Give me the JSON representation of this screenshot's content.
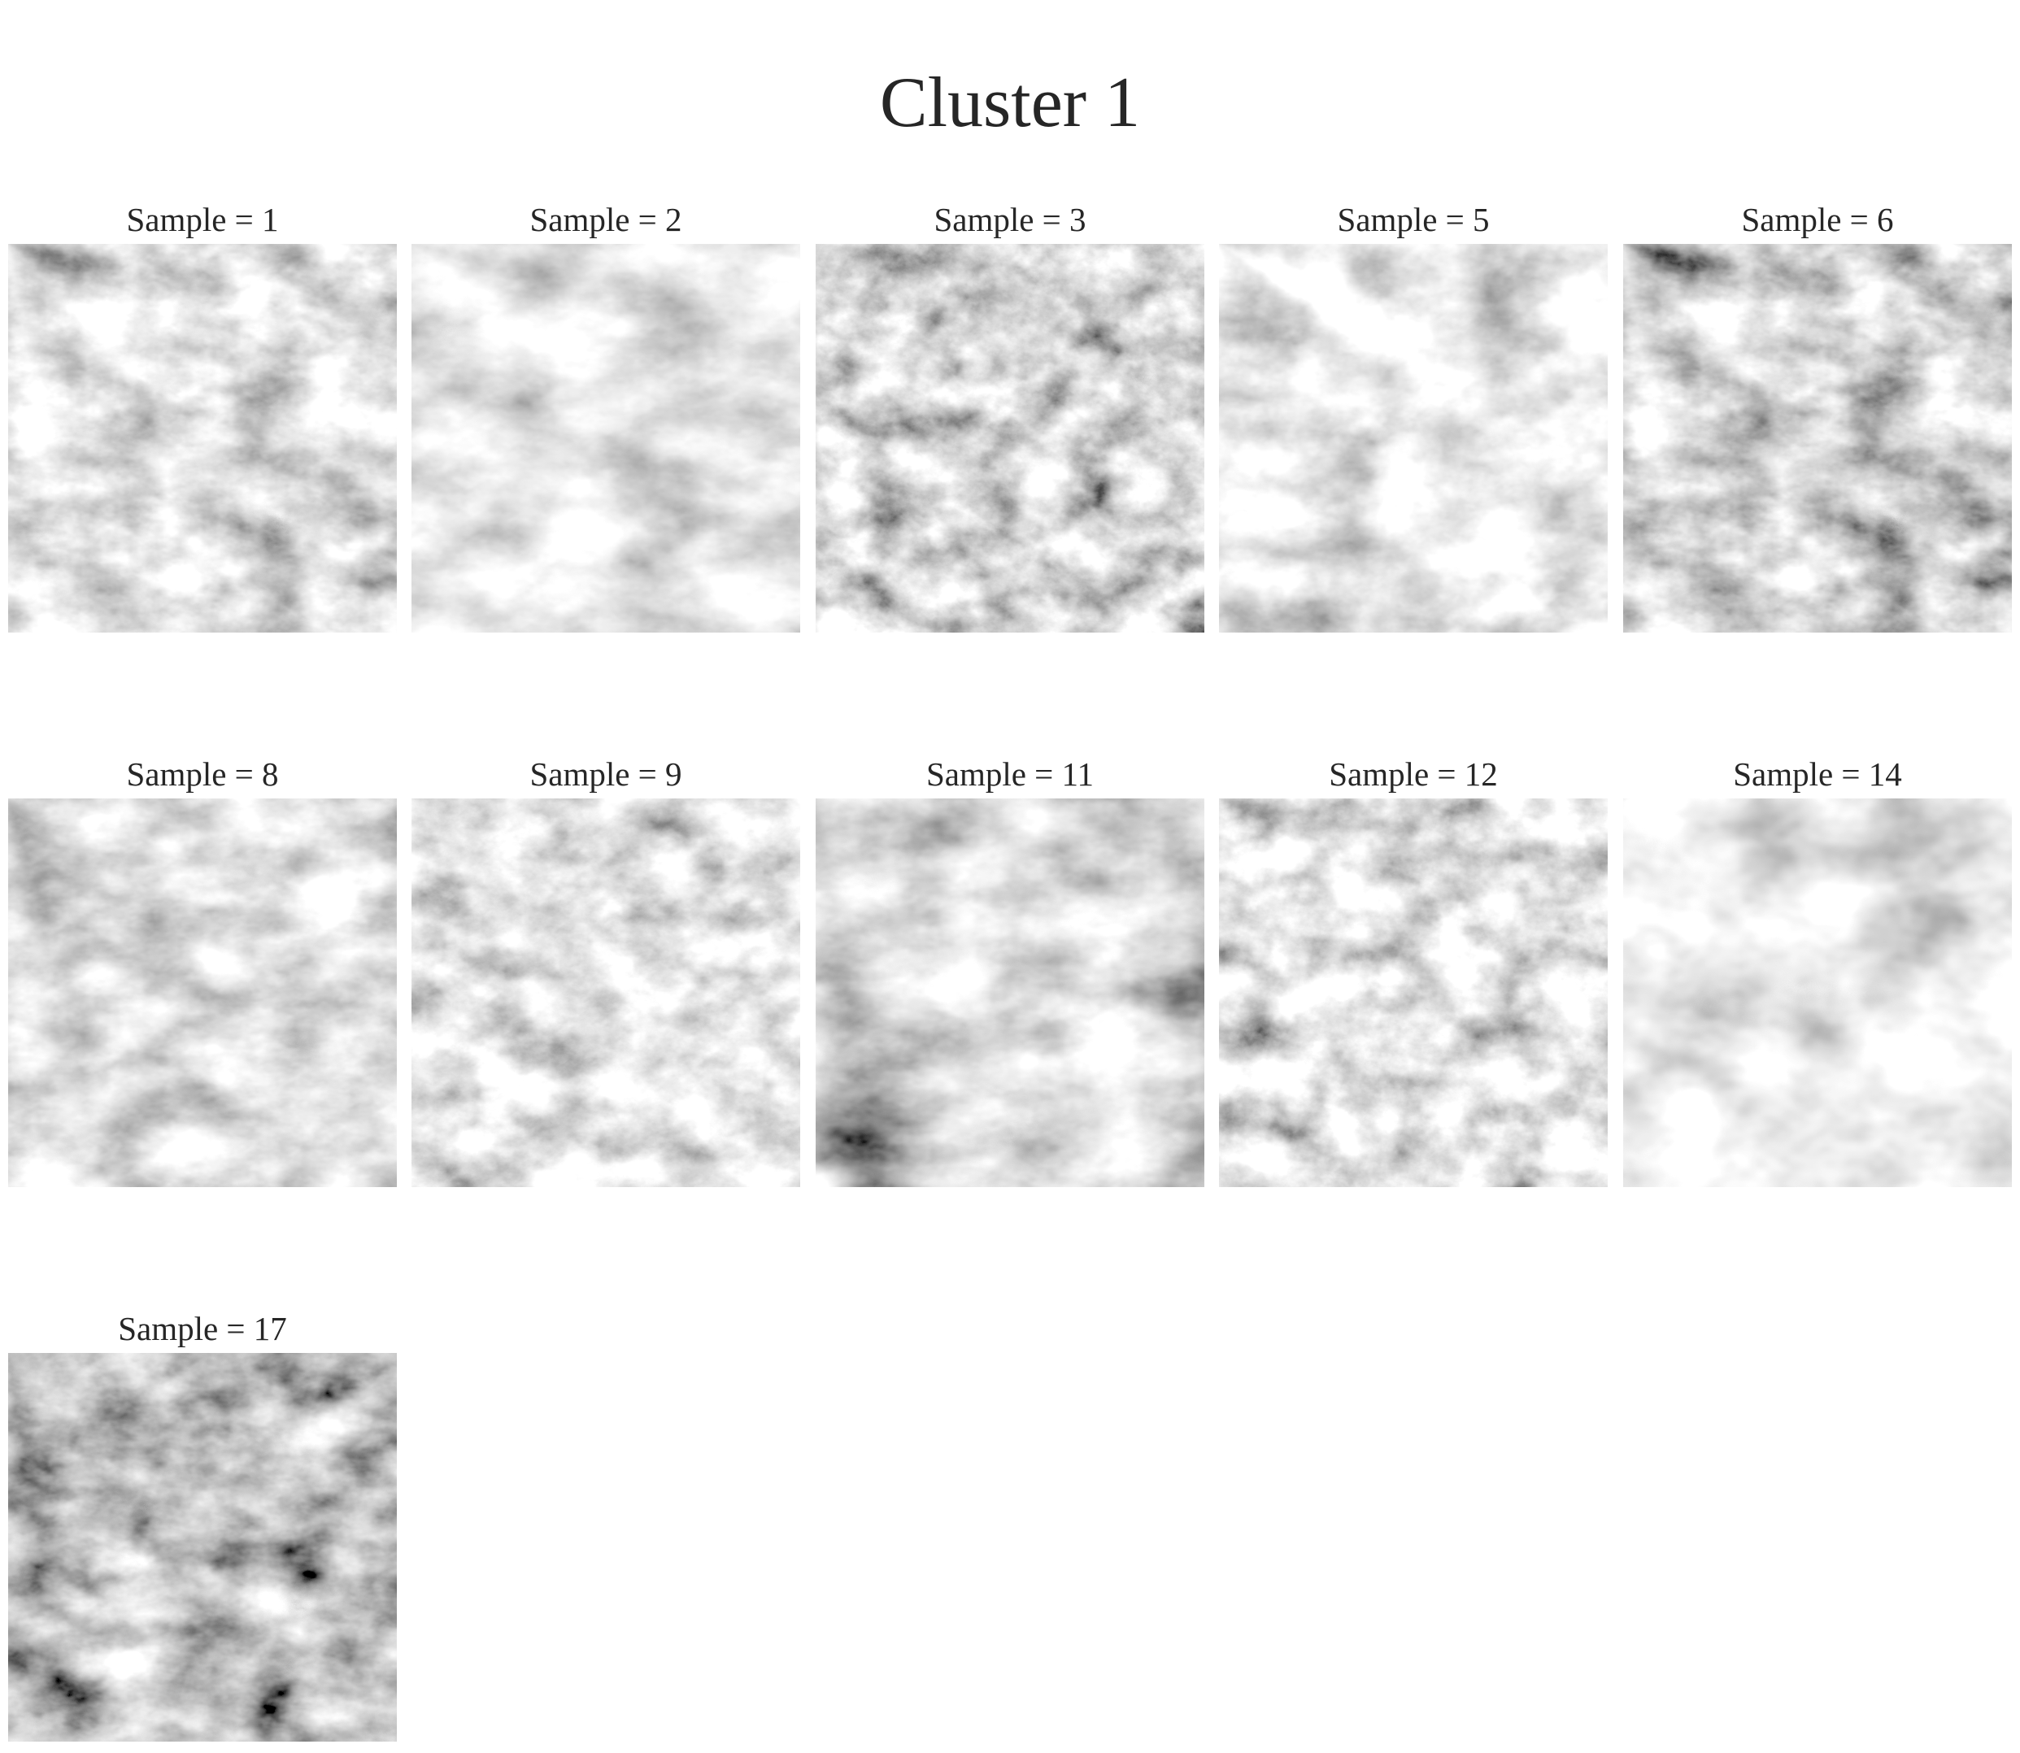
{
  "figure": {
    "title": "Cluster 1"
  },
  "panels": [
    {
      "title": "Sample = 1",
      "image": "grayscale-turbulence-texture"
    },
    {
      "title": "Sample = 2",
      "image": "grayscale-turbulence-texture"
    },
    {
      "title": "Sample = 3",
      "image": "grayscale-turbulence-texture"
    },
    {
      "title": "Sample = 5",
      "image": "grayscale-turbulence-texture"
    },
    {
      "title": "Sample = 6",
      "image": "grayscale-turbulence-texture"
    },
    {
      "title": "Sample = 8",
      "image": "grayscale-turbulence-texture"
    },
    {
      "title": "Sample = 9",
      "image": "grayscale-turbulence-texture"
    },
    {
      "title": "Sample = 11",
      "image": "grayscale-turbulence-texture"
    },
    {
      "title": "Sample = 12",
      "image": "grayscale-turbulence-texture"
    },
    {
      "title": "Sample = 14",
      "image": "grayscale-turbulence-texture"
    },
    {
      "title": "Sample = 17",
      "image": "grayscale-turbulence-texture"
    }
  ]
}
